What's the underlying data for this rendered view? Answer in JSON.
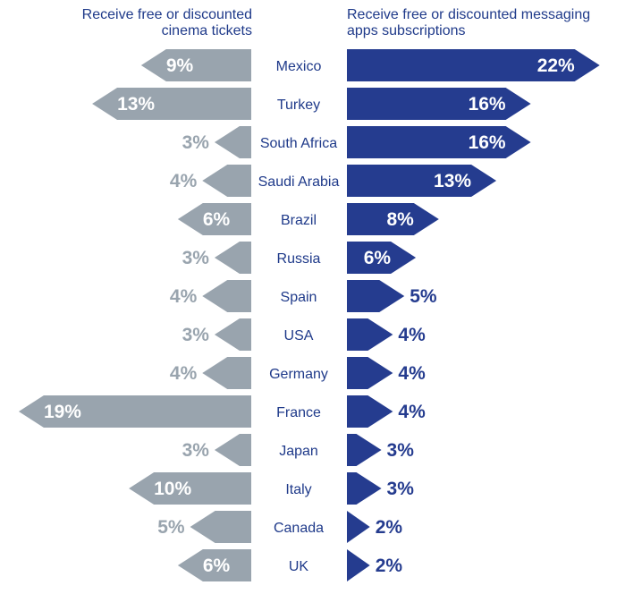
{
  "headers": {
    "left": "Receive free or discounted cinema tickets",
    "right": "Receive free or discounted messaging apps subscriptions"
  },
  "colors": {
    "left_bar": "#99a4ae",
    "right_bar": "#253c8f",
    "country_text": "#1f3a8a"
  },
  "chart_data": {
    "type": "bar",
    "categories": [
      "Mexico",
      "Turkey",
      "South Africa",
      "Saudi Arabia",
      "Brazil",
      "Russia",
      "Spain",
      "USA",
      "Germany",
      "France",
      "Japan",
      "Italy",
      "Canada",
      "UK"
    ],
    "series": [
      {
        "name": "Receive free or discounted cinema tickets",
        "values": [
          9,
          13,
          3,
          4,
          6,
          3,
          4,
          3,
          4,
          19,
          3,
          10,
          5,
          6
        ]
      },
      {
        "name": "Receive free or discounted messaging apps subscriptions",
        "values": [
          22,
          16,
          16,
          13,
          8,
          6,
          5,
          4,
          4,
          4,
          3,
          3,
          2,
          2
        ]
      }
    ],
    "unit": "%"
  }
}
